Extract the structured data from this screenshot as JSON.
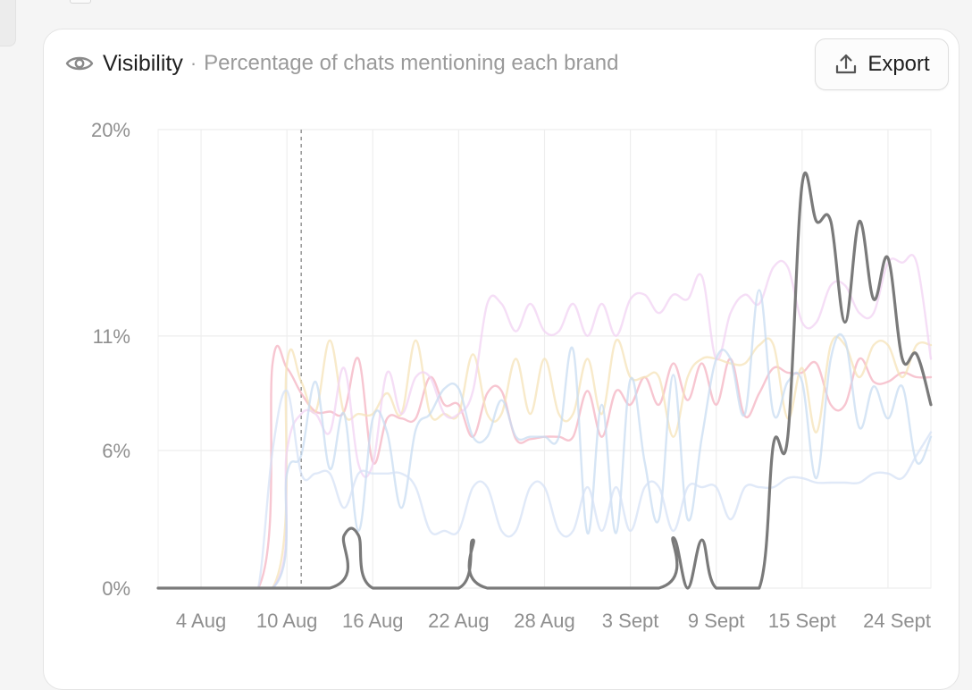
{
  "header": {
    "title": "Visibility",
    "separator": "·",
    "subtitle": "Percentage of chats mentioning each brand",
    "icon": "eye-icon"
  },
  "toolbar": {
    "export_label": "Export",
    "export_icon": "upload-icon"
  },
  "chart_data": {
    "type": "line",
    "title": "",
    "xlabel": "",
    "ylabel": "",
    "y_tick_values": [
      0,
      6,
      11,
      20
    ],
    "y_tick_labels": [
      "0%",
      "6%",
      "11%",
      "20%"
    ],
    "ylim": [
      0,
      20
    ],
    "x_domain": [
      0,
      54
    ],
    "x_tick_values": [
      3,
      9,
      15,
      21,
      27,
      33,
      39,
      45,
      51
    ],
    "x_tick_labels": [
      "4 Aug",
      "10 Aug",
      "16 Aug",
      "22 Aug",
      "28 Aug",
      "3 Sept",
      "9 Sept",
      "15 Sept",
      "24 Sept"
    ],
    "grid": true,
    "hover_marker_x": 10,
    "series": [
      {
        "color": "#7a7a7a",
        "highlight": true,
        "points": [
          [
            0,
            0
          ],
          [
            12,
            0
          ],
          [
            13,
            2.3
          ],
          [
            14,
            2.3
          ],
          [
            15,
            0
          ],
          [
            21,
            0
          ],
          [
            22,
            2.1
          ],
          [
            23,
            0
          ],
          [
            35,
            0
          ],
          [
            36,
            2.2
          ],
          [
            37,
            0
          ],
          [
            38,
            2.1
          ],
          [
            39,
            0
          ],
          [
            42,
            0
          ],
          [
            43,
            6.3
          ],
          [
            44,
            6.6
          ],
          [
            45,
            17.6
          ],
          [
            46,
            16
          ],
          [
            47,
            16
          ],
          [
            48,
            11.6
          ],
          [
            49,
            16
          ],
          [
            50,
            12.6
          ],
          [
            51,
            14.4
          ],
          [
            52,
            10
          ],
          [
            53,
            10.2
          ],
          [
            54,
            8
          ]
        ]
      },
      {
        "color": "#f4b3c2",
        "highlight": false,
        "points": [
          [
            0,
            0
          ],
          [
            7,
            0
          ],
          [
            8,
            9.8
          ],
          [
            9,
            9.6
          ],
          [
            10,
            8.5
          ],
          [
            11,
            7.7
          ],
          [
            12,
            7.7
          ],
          [
            13,
            7.7
          ],
          [
            14,
            10
          ],
          [
            15,
            5.5
          ],
          [
            16,
            7.4
          ],
          [
            17,
            7.4
          ],
          [
            18,
            7.4
          ],
          [
            19,
            9.2
          ],
          [
            20,
            8
          ],
          [
            21,
            8
          ],
          [
            22,
            6.6
          ],
          [
            23,
            8.5
          ],
          [
            24,
            8.6
          ],
          [
            25,
            6.5
          ],
          [
            26,
            6.5
          ],
          [
            27,
            6.6
          ],
          [
            28,
            6.6
          ],
          [
            29,
            6.6
          ],
          [
            30,
            8.6
          ],
          [
            31,
            6.6
          ],
          [
            32,
            8.6
          ],
          [
            33,
            8
          ],
          [
            34,
            9.2
          ],
          [
            35,
            8
          ],
          [
            36,
            9.8
          ],
          [
            37,
            8.2
          ],
          [
            38,
            9.8
          ],
          [
            39,
            8
          ],
          [
            40,
            10
          ],
          [
            41,
            7.5
          ],
          [
            42,
            8.5
          ],
          [
            43,
            9.6
          ],
          [
            44,
            9.4
          ],
          [
            45,
            9.4
          ],
          [
            46,
            9.8
          ],
          [
            47,
            8
          ],
          [
            48,
            8
          ],
          [
            49,
            10
          ],
          [
            50,
            9
          ],
          [
            51,
            9
          ],
          [
            52,
            9.4
          ],
          [
            53,
            9.2
          ],
          [
            54,
            9.2
          ]
        ]
      },
      {
        "color": "#f5e3b8",
        "highlight": false,
        "points": [
          [
            0,
            0
          ],
          [
            8,
            0
          ],
          [
            9,
            9.8
          ],
          [
            10,
            9
          ],
          [
            11,
            7.7
          ],
          [
            12,
            10.8
          ],
          [
            13,
            7.6
          ],
          [
            14,
            7.6
          ],
          [
            15,
            7.6
          ],
          [
            16,
            8.5
          ],
          [
            17,
            7.6
          ],
          [
            18,
            10.8
          ],
          [
            19,
            7.6
          ],
          [
            20,
            7.6
          ],
          [
            21,
            7.6
          ],
          [
            22,
            10.2
          ],
          [
            23,
            7.6
          ],
          [
            24,
            7.6
          ],
          [
            25,
            10
          ],
          [
            26,
            7.6
          ],
          [
            27,
            10
          ],
          [
            28,
            7.6
          ],
          [
            29,
            7.6
          ],
          [
            30,
            10
          ],
          [
            31,
            7.6
          ],
          [
            32,
            10.8
          ],
          [
            33,
            9.2
          ],
          [
            34,
            9.2
          ],
          [
            35,
            9.2
          ],
          [
            36,
            6.6
          ],
          [
            37,
            9.2
          ],
          [
            38,
            10
          ],
          [
            39,
            10
          ],
          [
            40,
            9.8
          ],
          [
            41,
            9.8
          ],
          [
            42,
            10.6
          ],
          [
            43,
            10.6
          ],
          [
            44,
            7.4
          ],
          [
            45,
            9.6
          ],
          [
            46,
            6.8
          ],
          [
            47,
            10.6
          ],
          [
            48,
            10.6
          ],
          [
            49,
            9.2
          ],
          [
            50,
            10.6
          ],
          [
            51,
            10.6
          ],
          [
            52,
            9.2
          ],
          [
            53,
            10.6
          ],
          [
            54,
            10.6
          ]
        ]
      },
      {
        "color": "#f1d3f3",
        "highlight": false,
        "points": [
          [
            0,
            0
          ],
          [
            8,
            0
          ],
          [
            9,
            6
          ],
          [
            10,
            7.6
          ],
          [
            11,
            7.6
          ],
          [
            12,
            6.8
          ],
          [
            13,
            9.6
          ],
          [
            14,
            5.4
          ],
          [
            15,
            5.4
          ],
          [
            16,
            9.4
          ],
          [
            17,
            7.6
          ],
          [
            18,
            9.2
          ],
          [
            19,
            9.2
          ],
          [
            20,
            7.6
          ],
          [
            21,
            7.6
          ],
          [
            22,
            8.6
          ],
          [
            23,
            12.4
          ],
          [
            24,
            12.4
          ],
          [
            25,
            11.2
          ],
          [
            26,
            12.4
          ],
          [
            27,
            11.2
          ],
          [
            28,
            11.2
          ],
          [
            29,
            12.4
          ],
          [
            30,
            11
          ],
          [
            31,
            12.4
          ],
          [
            32,
            11
          ],
          [
            33,
            12.6
          ],
          [
            34,
            12.8
          ],
          [
            35,
            12
          ],
          [
            36,
            12.8
          ],
          [
            37,
            12.6
          ],
          [
            38,
            13.6
          ],
          [
            39,
            10
          ],
          [
            40,
            12
          ],
          [
            41,
            12.8
          ],
          [
            42,
            12.4
          ],
          [
            43,
            14
          ],
          [
            44,
            14
          ],
          [
            45,
            11.6
          ],
          [
            46,
            11.6
          ],
          [
            47,
            13.2
          ],
          [
            48,
            13.2
          ],
          [
            49,
            12
          ],
          [
            50,
            12
          ],
          [
            51,
            14.2
          ],
          [
            52,
            14.2
          ],
          [
            53,
            14.2
          ],
          [
            54,
            10
          ]
        ]
      },
      {
        "color": "#c8dcf2",
        "highlight": false,
        "points": [
          [
            0,
            0
          ],
          [
            8,
            0
          ],
          [
            9,
            5
          ],
          [
            10,
            5.8
          ],
          [
            11,
            9
          ],
          [
            12,
            5.2
          ],
          [
            13,
            7.6
          ],
          [
            14,
            2.5
          ],
          [
            15,
            7.4
          ],
          [
            16,
            6.8
          ],
          [
            17,
            3.5
          ],
          [
            18,
            6.9
          ],
          [
            19,
            7.6
          ],
          [
            20,
            8.7
          ],
          [
            21,
            8.7
          ],
          [
            22,
            6.6
          ],
          [
            23,
            6.6
          ],
          [
            24,
            8.2
          ],
          [
            25,
            6.6
          ],
          [
            26,
            6.6
          ],
          [
            27,
            6.6
          ],
          [
            28,
            6.6
          ],
          [
            29,
            10.4
          ],
          [
            30,
            2.4
          ],
          [
            31,
            8
          ],
          [
            32,
            2.4
          ],
          [
            33,
            9.1
          ],
          [
            34,
            5.5
          ],
          [
            35,
            3
          ],
          [
            36,
            9.3
          ],
          [
            37,
            3
          ],
          [
            38,
            6.6
          ],
          [
            39,
            10
          ],
          [
            40,
            10
          ],
          [
            41,
            7.6
          ],
          [
            42,
            13
          ],
          [
            43,
            7.6
          ],
          [
            44,
            9
          ],
          [
            45,
            9
          ],
          [
            46,
            4.8
          ],
          [
            47,
            10
          ],
          [
            48,
            10.8
          ],
          [
            49,
            7
          ],
          [
            50,
            8.8
          ],
          [
            51,
            7.4
          ],
          [
            52,
            8.8
          ],
          [
            53,
            5.5
          ],
          [
            54,
            6.6
          ]
        ]
      },
      {
        "color": "#d6e2f6",
        "highlight": false,
        "points": [
          [
            0,
            0
          ],
          [
            6,
            0
          ],
          [
            7,
            0
          ],
          [
            8,
            6
          ],
          [
            9,
            8.6
          ],
          [
            10,
            5
          ],
          [
            11,
            5
          ],
          [
            12,
            5
          ],
          [
            13,
            3.5
          ],
          [
            14,
            5
          ],
          [
            15,
            5
          ],
          [
            16,
            5
          ],
          [
            17,
            5
          ],
          [
            18,
            4.4
          ],
          [
            19,
            2.5
          ],
          [
            20,
            2.5
          ],
          [
            21,
            2.5
          ],
          [
            22,
            4.4
          ],
          [
            23,
            4.4
          ],
          [
            24,
            2.5
          ],
          [
            25,
            2.5
          ],
          [
            26,
            4.4
          ],
          [
            27,
            4.4
          ],
          [
            28,
            2.5
          ],
          [
            29,
            2.5
          ],
          [
            30,
            4.4
          ],
          [
            31,
            2.5
          ],
          [
            32,
            4.4
          ],
          [
            33,
            2.5
          ],
          [
            34,
            4.4
          ],
          [
            35,
            4.4
          ],
          [
            36,
            2.5
          ],
          [
            37,
            4.4
          ],
          [
            38,
            4.4
          ],
          [
            39,
            4.4
          ],
          [
            40,
            3
          ],
          [
            41,
            4.4
          ],
          [
            42,
            4.4
          ],
          [
            43,
            4.4
          ],
          [
            44,
            4.8
          ],
          [
            45,
            4.8
          ],
          [
            46,
            4.6
          ],
          [
            47,
            4.6
          ],
          [
            48,
            4.6
          ],
          [
            49,
            4.6
          ],
          [
            50,
            5
          ],
          [
            51,
            5
          ],
          [
            52,
            4.8
          ],
          [
            53,
            5.8
          ],
          [
            54,
            6.8
          ]
        ]
      }
    ]
  }
}
